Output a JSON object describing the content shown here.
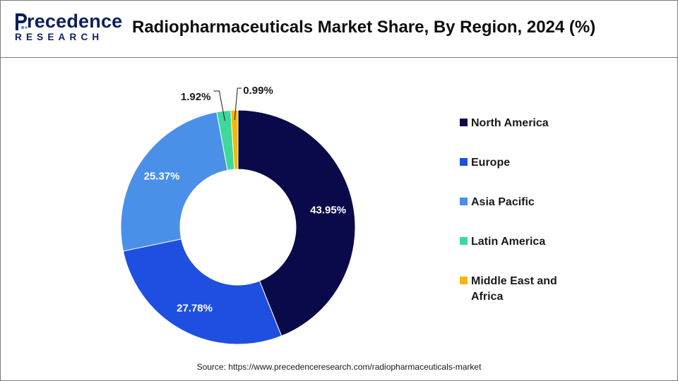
{
  "header": {
    "logo_top_rest": "recedence",
    "logo_bottom": "RESEARCH",
    "title": "Radiopharmaceuticals Market Share, By Region, 2024 (%)"
  },
  "colors": {
    "brand": "#0b1f5c",
    "north_america": "#0a0a4a",
    "europe": "#1f4fe0",
    "asia_pacific": "#4a90e8",
    "latin_america": "#3ed99a",
    "mea": "#f5b800"
  },
  "chart_data": {
    "type": "pie",
    "variant": "donut",
    "title": "Radiopharmaceuticals Market Share, By Region, 2024 (%)",
    "unit": "%",
    "legend_position": "right",
    "slices": [
      {
        "name": "North America",
        "value": 43.95,
        "label": "43.95%",
        "color": "#0a0a4a"
      },
      {
        "name": "Europe",
        "value": 27.78,
        "label": "27.78%",
        "color": "#1f4fe0"
      },
      {
        "name": "Asia Pacific",
        "value": 25.37,
        "label": "25.37%",
        "color": "#4a90e8"
      },
      {
        "name": "Latin America",
        "value": 1.92,
        "label": "1.92%",
        "color": "#3ed99a"
      },
      {
        "name": "Middle East and Africa",
        "value": 0.99,
        "label": "0.99%",
        "color": "#f5b800"
      }
    ]
  },
  "source": "Source: https://www.precedenceresearch.com/radiopharmaceuticals-market"
}
